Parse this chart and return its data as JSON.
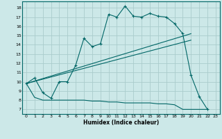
{
  "title": "",
  "xlabel": "Humidex (Indice chaleur)",
  "bg_color": "#cce8e8",
  "grid_color": "#aacccc",
  "line_color": "#006666",
  "xlim": [
    -0.5,
    23.5
  ],
  "ylim": [
    6.5,
    18.7
  ],
  "xticks": [
    0,
    1,
    2,
    3,
    4,
    5,
    6,
    7,
    8,
    9,
    10,
    11,
    12,
    13,
    14,
    15,
    16,
    17,
    18,
    19,
    20,
    21,
    22,
    23
  ],
  "yticks": [
    7,
    8,
    9,
    10,
    11,
    12,
    13,
    14,
    15,
    16,
    17,
    18
  ],
  "line1_x": [
    0,
    1,
    2,
    3,
    4,
    5,
    6,
    7,
    8,
    9,
    10,
    11,
    12,
    13,
    14,
    15,
    16,
    17,
    18,
    19,
    20,
    21,
    22
  ],
  "line1_y": [
    9.8,
    10.4,
    8.8,
    8.2,
    10.0,
    10.0,
    11.8,
    14.7,
    13.8,
    14.1,
    17.3,
    17.0,
    18.2,
    17.1,
    17.0,
    17.4,
    17.1,
    17.0,
    16.3,
    15.2,
    10.7,
    8.4,
    7.0
  ],
  "line2_x": [
    0,
    20
  ],
  "line2_y": [
    9.8,
    15.2
  ],
  "line3_x": [
    0,
    20
  ],
  "line3_y": [
    9.8,
    14.5
  ],
  "line4_x": [
    0,
    1,
    2,
    3,
    4,
    5,
    6,
    7,
    8,
    9,
    10,
    11,
    12,
    13,
    14,
    15,
    16,
    17,
    18,
    19,
    20,
    21,
    22
  ],
  "line4_y": [
    9.8,
    8.3,
    8.0,
    8.0,
    8.0,
    8.0,
    8.0,
    8.0,
    7.9,
    7.9,
    7.8,
    7.8,
    7.7,
    7.7,
    7.7,
    7.7,
    7.6,
    7.6,
    7.5,
    7.0,
    7.0,
    7.0,
    7.0
  ]
}
